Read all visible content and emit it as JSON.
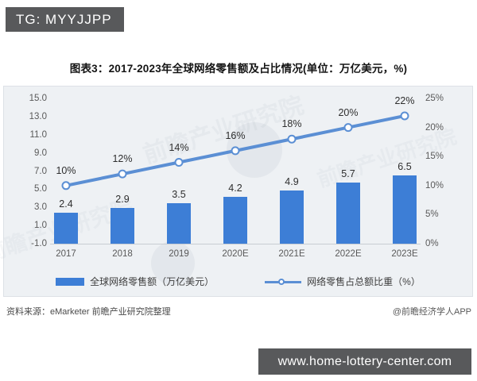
{
  "badge": {
    "label": "TG: MYYJJPP"
  },
  "title": "图表3：2017-2023年全球网络零售额及占比情况(单位：万亿美元，%)",
  "chart_data": {
    "type": "combo",
    "categories": [
      "2017",
      "2018",
      "2019",
      "2020E",
      "2021E",
      "2022E",
      "2023E"
    ],
    "series": [
      {
        "name": "全球网络零售额（万亿美元）",
        "type": "bar",
        "values": [
          2.4,
          2.9,
          3.5,
          4.2,
          4.9,
          5.7,
          6.5
        ],
        "color": "#3d7ed6"
      },
      {
        "name": "网络零售占总额比重（%）",
        "type": "line",
        "values": [
          10,
          12,
          14,
          16,
          18,
          20,
          22
        ],
        "labels": [
          "10%",
          "12%",
          "14%",
          "16%",
          "18%",
          "20%",
          "22%"
        ],
        "color": "#5b8fd4"
      }
    ],
    "left_axis": {
      "ticks": [
        "15.0",
        "13.0",
        "11.0",
        "9.0",
        "7.0",
        "5.0",
        "3.0",
        "1.0",
        "-1.0"
      ],
      "min": -1,
      "max": 15
    },
    "right_axis": {
      "ticks": [
        "25%",
        "20%",
        "15%",
        "10%",
        "5%",
        "0%"
      ],
      "min": 0,
      "max": 25
    },
    "grid": false,
    "legend_position": "bottom",
    "marker_fill": "#ffffff"
  },
  "watermark": {
    "text": "前瞻产业研究院"
  },
  "footer": {
    "source": "资料来源：eMarketer 前瞻产业研究院整理",
    "credit": "@前瞻经济学人APP"
  },
  "url_bar": {
    "text": "www.home-lottery-center.com"
  }
}
